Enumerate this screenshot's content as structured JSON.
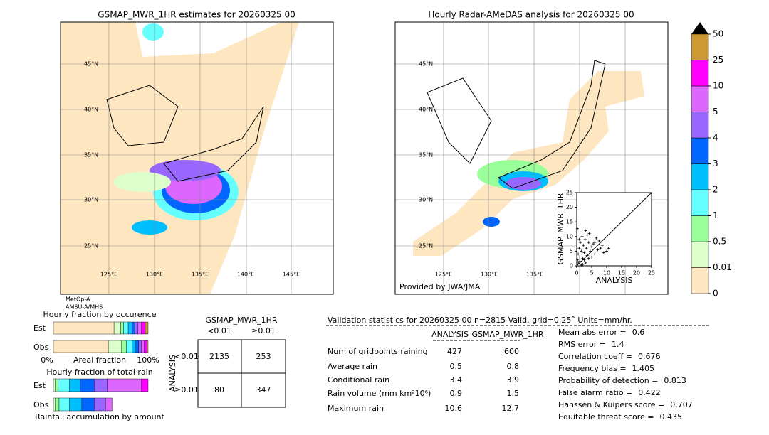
{
  "left_map": {
    "title": "GSMAP_MWR_1HR estimates for 20260325 00",
    "lat_labels": [
      "45°N",
      "40°N",
      "35°N",
      "30°N",
      "25°N"
    ],
    "lon_labels": [
      "125°E",
      "130°E",
      "135°E",
      "140°E",
      "145°E"
    ],
    "sensors": [
      "MetOp-A",
      "AMSU-A/MHS"
    ]
  },
  "right_map": {
    "title": "Hourly Radar-AMeDAS analysis for 20260325 00",
    "lat_labels": [
      "45°N",
      "40°N",
      "35°N",
      "30°N",
      "25°N"
    ],
    "lon_labels": [
      "125°E",
      "130°E",
      "135°E"
    ],
    "credit": "Provided by JWA/JMA"
  },
  "chart_data": {
    "type": "scatter",
    "xlabel": "ANALYSIS",
    "ylabel": "GSMAP_MWR_1HR",
    "xlim": [
      0,
      25
    ],
    "ylim": [
      0,
      25
    ],
    "xticks": [
      0,
      5,
      10,
      15,
      20,
      25
    ],
    "yticks": [
      0,
      5,
      10,
      15,
      20,
      25
    ],
    "x": [
      0.3,
      0.5,
      0.8,
      1.0,
      1.2,
      1.5,
      1.8,
      2.0,
      2.2,
      2.5,
      2.8,
      3.0,
      3.2,
      3.5,
      4.0,
      4.2,
      4.5,
      5.0,
      5.5,
      6.0,
      6.5,
      7.0,
      7.5,
      8.0,
      8.5,
      9.0,
      10.0,
      10.6,
      0.5,
      1.0,
      2.0,
      3.0,
      0.2,
      1.5,
      2.5,
      4.0,
      5.0,
      6.0,
      3.5,
      0.8
    ],
    "y": [
      2.0,
      4.0,
      6.0,
      3.0,
      8.0,
      5.0,
      10.0,
      2.5,
      7.0,
      4.5,
      9.0,
      12.0,
      6.0,
      3.5,
      8.0,
      11.0,
      5.0,
      6.5,
      7.5,
      4.0,
      9.5,
      5.5,
      8.5,
      6.0,
      7.0,
      4.5,
      5.0,
      6.0,
      1.0,
      1.5,
      0.5,
      1.0,
      12.7,
      0.3,
      2.0,
      2.5,
      3.0,
      8.0,
      10.5,
      9.0
    ]
  },
  "colorbar": {
    "levels": [
      0,
      0.01,
      0.5,
      1,
      2,
      3,
      4,
      5,
      10,
      25,
      50
    ],
    "colors": [
      "#fde6c0",
      "#ddffcc",
      "#99ff99",
      "#66ffff",
      "#00bfff",
      "#0066ff",
      "#9966ff",
      "#dd66ff",
      "#ff00ff",
      "#cc9933"
    ],
    "over_color": "#000000"
  },
  "fractions": {
    "occurrence_title": "Hourly fraction by occurence",
    "row_labels": [
      "Est",
      "Obs"
    ],
    "axis_left": "0%",
    "axis_label": "Areal fraction",
    "axis_right": "100%",
    "occurrence": [
      [
        64,
        7,
        3,
        5,
        4,
        3,
        3,
        4,
        4,
        2,
        1
      ],
      [
        58,
        14,
        5,
        6,
        4,
        3,
        3,
        3,
        3,
        1,
        0
      ]
    ],
    "total_title": "Hourly fraction of total rain",
    "total": [
      [
        0,
        2,
        3,
        12,
        11,
        15,
        14,
        36,
        7
      ],
      [
        0,
        2,
        4,
        11,
        13,
        13,
        12,
        7,
        0
      ]
    ],
    "total_colors_from": 1,
    "bottom_title": "Rainfall accumulation by amount"
  },
  "contingency": {
    "title": "GSMAP_MWR_1HR",
    "col_labels": [
      "<0.01",
      "≥0.01"
    ],
    "row_title": "ANALYSIS",
    "row_labels": [
      "<0.01",
      "≥0.01"
    ],
    "cells": [
      [
        2135,
        253
      ],
      [
        80,
        347
      ]
    ]
  },
  "validation": {
    "header": "Validation statistics for 20260325 00  n=2815 Valid. grid=0.25˚ Units=mm/hr.",
    "columns": [
      "ANALYSIS",
      "GSMAP_MWR_1HR"
    ],
    "rows": [
      {
        "label": "Num of gridpoints raining",
        "values": [
          427,
          600
        ]
      },
      {
        "label": "Average rain",
        "values": [
          0.5,
          0.8
        ]
      },
      {
        "label": "Conditional rain",
        "values": [
          3.4,
          3.9
        ]
      },
      {
        "label": "Rain volume (mm km²10⁶)",
        "values": [
          0.9,
          1.5
        ]
      },
      {
        "label": "Maximum rain",
        "values": [
          10.6,
          12.7
        ]
      }
    ],
    "scores": [
      {
        "label": "Mean abs error =",
        "value": 0.6
      },
      {
        "label": "RMS error =",
        "value": 1.4
      },
      {
        "label": "Correlation coeff =",
        "value": 0.676
      },
      {
        "label": "Frequency bias =",
        "value": 1.405
      },
      {
        "label": "Probability of detection =",
        "value": 0.813
      },
      {
        "label": "False alarm ratio =",
        "value": 0.422
      },
      {
        "label": "Hanssen & Kuipers score =",
        "value": 0.707
      },
      {
        "label": "Equitable threat score =",
        "value": 0.435
      }
    ]
  }
}
